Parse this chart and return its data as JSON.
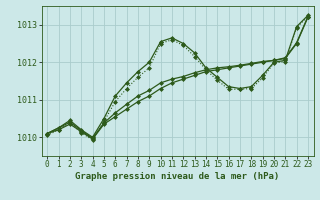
{
  "bg_color": "#cce8e8",
  "grid_color": "#aacccc",
  "line_color": "#2d5a1b",
  "title": "Graphe pression niveau de la mer (hPa)",
  "title_fontsize": 6.5,
  "tick_fontsize": 5.5,
  "xlim": [
    -0.5,
    23.5
  ],
  "ylim": [
    1009.5,
    1013.5
  ],
  "yticks": [
    1010,
    1011,
    1012,
    1013
  ],
  "xticks": [
    0,
    1,
    2,
    3,
    4,
    5,
    6,
    7,
    8,
    9,
    10,
    11,
    12,
    13,
    14,
    15,
    16,
    17,
    18,
    19,
    20,
    21,
    22,
    23
  ],
  "series": [
    {
      "x": [
        0,
        1,
        2,
        3,
        4,
        5,
        6,
        7,
        8,
        9,
        10,
        11,
        12,
        13,
        14,
        15,
        16,
        17,
        18,
        19,
        20,
        21,
        22,
        23
      ],
      "y": [
        1010.1,
        1010.25,
        1010.45,
        1010.2,
        1010.0,
        1010.5,
        1011.1,
        1011.45,
        1011.75,
        1012.0,
        1012.55,
        1012.65,
        1012.5,
        1012.25,
        1011.85,
        1011.6,
        1011.35,
        1011.3,
        1011.35,
        1011.65,
        1012.0,
        1012.05,
        1012.95,
        1013.25
      ],
      "style": "-",
      "marker": "D",
      "markersize": 2.0,
      "linewidth": 0.9
    },
    {
      "x": [
        0,
        1,
        2,
        3,
        4,
        5,
        6,
        7,
        8,
        9,
        10,
        11,
        12,
        13,
        14,
        15,
        16,
        17,
        18,
        19,
        20,
        21,
        22,
        23
      ],
      "y": [
        1010.1,
        1010.2,
        1010.35,
        1010.15,
        1009.95,
        1010.35,
        1010.55,
        1010.75,
        1010.95,
        1011.1,
        1011.3,
        1011.45,
        1011.55,
        1011.65,
        1011.75,
        1011.8,
        1011.85,
        1011.9,
        1011.95,
        1012.0,
        1012.05,
        1012.1,
        1012.5,
        1013.2
      ],
      "style": "-",
      "marker": "D",
      "markersize": 2.0,
      "linewidth": 0.9
    },
    {
      "x": [
        0,
        1,
        2,
        3,
        4,
        5,
        6,
        7,
        8,
        9,
        10,
        11,
        12,
        13,
        14,
        15,
        16,
        17,
        18,
        19,
        20,
        21,
        22,
        23
      ],
      "y": [
        1010.1,
        1010.25,
        1010.4,
        1010.18,
        1009.97,
        1010.38,
        1010.65,
        1010.88,
        1011.1,
        1011.25,
        1011.45,
        1011.55,
        1011.62,
        1011.72,
        1011.8,
        1011.85,
        1011.88,
        1011.92,
        1011.97,
        1012.02,
        1012.05,
        1012.12,
        1012.52,
        1013.22
      ],
      "style": "-",
      "marker": "D",
      "markersize": 2.0,
      "linewidth": 0.9
    },
    {
      "x": [
        0,
        1,
        2,
        3,
        4,
        5,
        6,
        7,
        8,
        9,
        10,
        11,
        12,
        13,
        14,
        15,
        16,
        17,
        18,
        19,
        20,
        21,
        22,
        23
      ],
      "y": [
        1010.05,
        1010.2,
        1010.4,
        1010.12,
        1009.93,
        1010.42,
        1010.95,
        1011.3,
        1011.6,
        1011.85,
        1012.5,
        1012.6,
        1012.45,
        1012.15,
        1011.8,
        1011.52,
        1011.28,
        1011.28,
        1011.3,
        1011.58,
        1011.98,
        1012.02,
        1012.92,
        1013.22
      ],
      "style": ":",
      "marker": "D",
      "markersize": 2.0,
      "linewidth": 0.8
    }
  ]
}
